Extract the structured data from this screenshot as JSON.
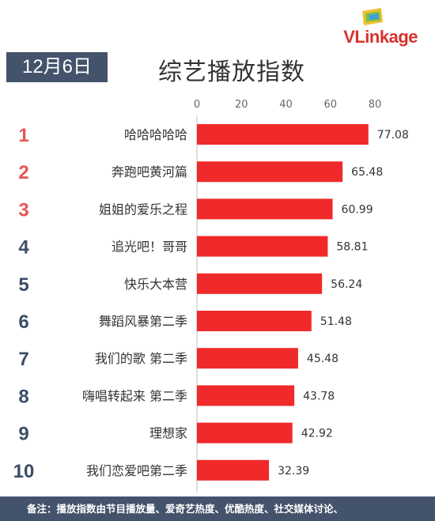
{
  "brand": {
    "name": "VLinkage",
    "color": "#d6322b"
  },
  "date_label": "12月6日",
  "title": "综艺播放指数",
  "footer_note": "备注：播放指数由节目播放量、爱奇艺热度、优酷热度、社交媒体讨论、",
  "colors": {
    "bar": "#f02a2a",
    "rank_top": "#e85555",
    "rank_other": "#3d4e66",
    "header_bg": "#43536b"
  },
  "chart_data": {
    "type": "bar",
    "orientation": "horizontal",
    "ranks": [
      "1",
      "2",
      "3",
      "4",
      "5",
      "6",
      "7",
      "8",
      "9",
      "10"
    ],
    "categories": [
      "哈哈哈哈哈",
      "奔跑吧黄河篇",
      "姐姐的爱乐之程",
      "追光吧！哥哥",
      "快乐大本营",
      "舞蹈风暴第二季",
      "我们的歌 第二季",
      "嗨唱转起来 第二季",
      "理想家",
      "我们恋爱吧第二季"
    ],
    "values": [
      77.08,
      65.48,
      60.99,
      58.81,
      56.24,
      51.48,
      45.48,
      43.78,
      42.92,
      32.39
    ],
    "value_labels": [
      "77.08",
      "65.48",
      "60.99",
      "58.81",
      "56.24",
      "51.48",
      "45.48",
      "43.78",
      "42.92",
      "32.39"
    ],
    "x_ticks": [
      "0",
      "20",
      "40",
      "60",
      "80"
    ],
    "xlim": [
      0,
      80
    ],
    "grid": false,
    "axis_position": "top"
  }
}
